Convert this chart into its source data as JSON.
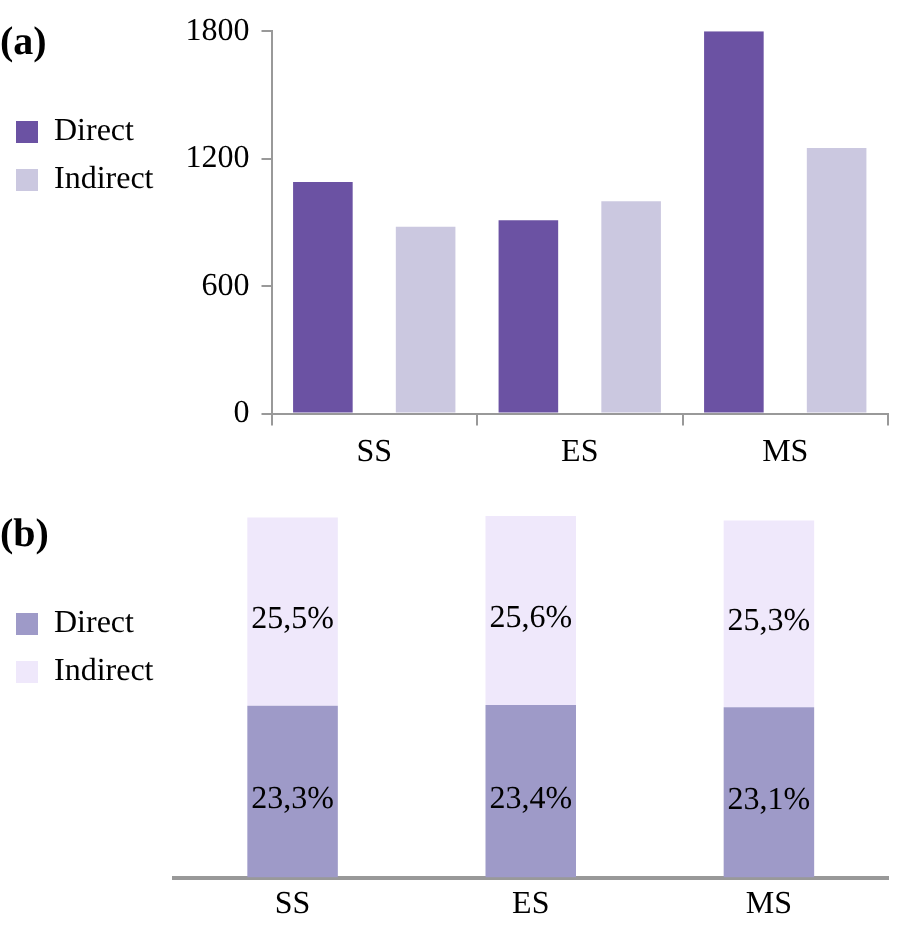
{
  "chart_data": [
    {
      "type": "bar",
      "title": "(a)",
      "categories": [
        "SS",
        "ES",
        "MS"
      ],
      "series": [
        {
          "name": "Direct",
          "color": "#6b52a3",
          "values": [
            1090,
            910,
            1800
          ]
        },
        {
          "name": "Indirect",
          "color": "#cbc8e0",
          "values": [
            880,
            1000,
            1250
          ]
        }
      ],
      "ylim": [
        0,
        1800
      ],
      "yticks": [
        0,
        600,
        1200,
        1800
      ],
      "grid": false,
      "legend": "left"
    },
    {
      "type": "bar",
      "title": "(b)",
      "categories": [
        "SS",
        "ES",
        "MS"
      ],
      "stacked": true,
      "series": [
        {
          "name": "Direct",
          "color": "#9e9ac8",
          "values": [
            23.3,
            23.4,
            23.1
          ],
          "value_labels": [
            "23,3%",
            "23,4%",
            "23,1%"
          ]
        },
        {
          "name": "Indirect",
          "color": "#efe8fb",
          "values": [
            25.5,
            25.6,
            25.3
          ],
          "value_labels": [
            "25,5%",
            "25,6%",
            "25,3%"
          ]
        }
      ],
      "tick_labels": "x",
      "grid": false,
      "legend": "left"
    }
  ]
}
